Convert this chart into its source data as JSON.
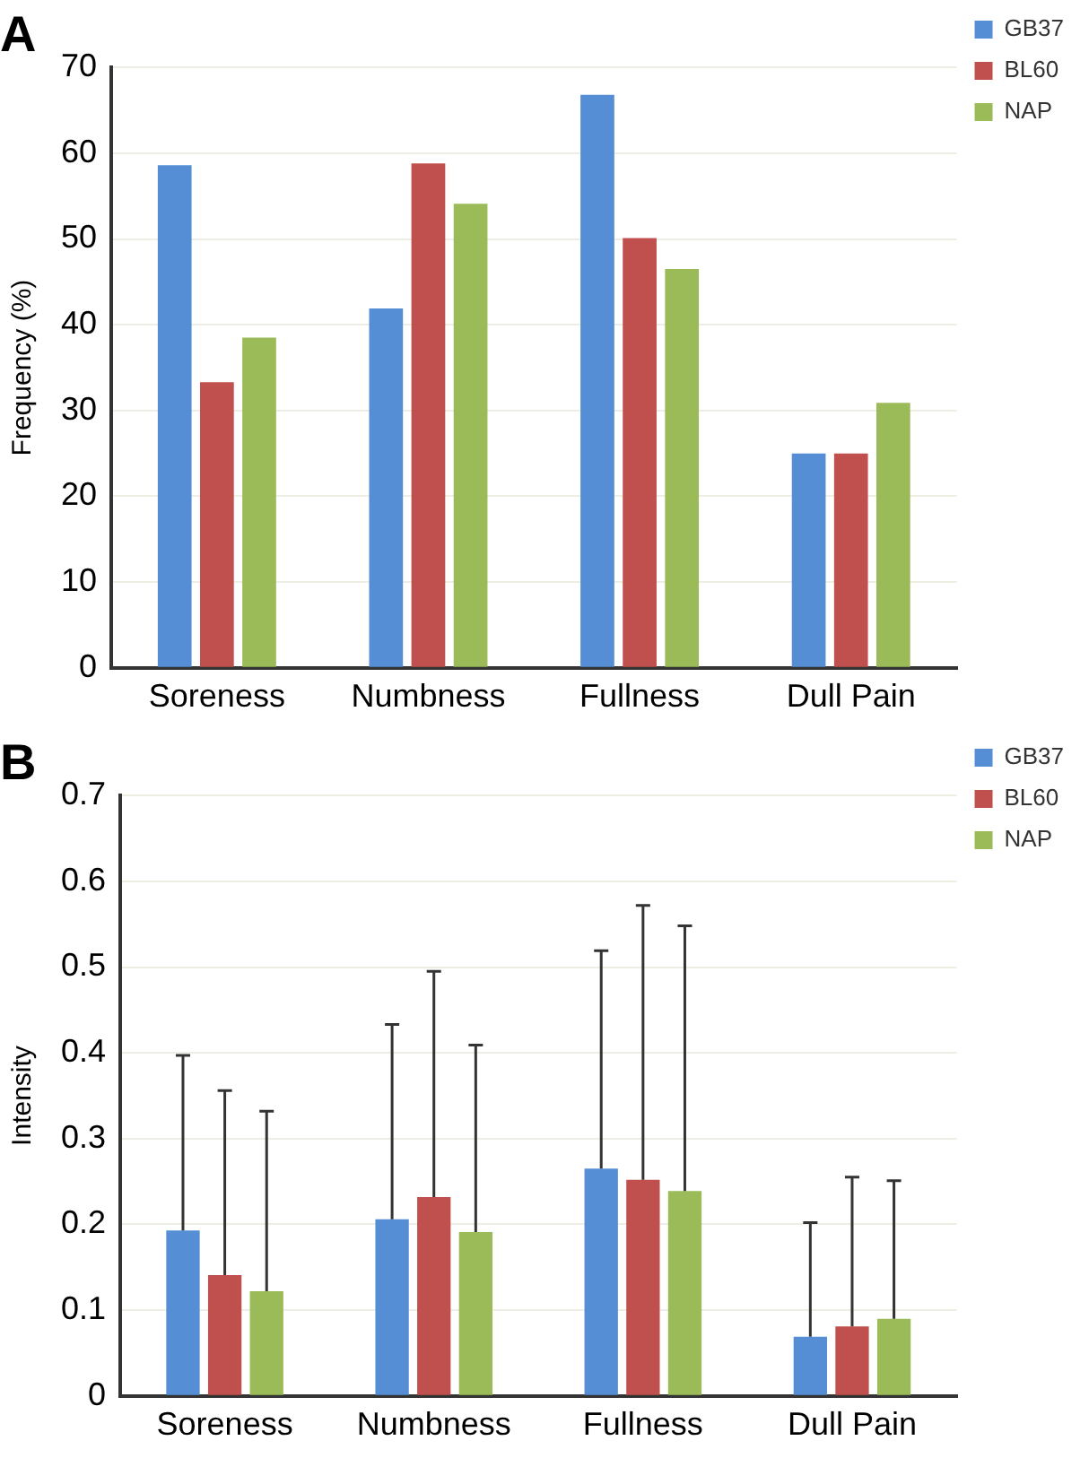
{
  "chart_data": [
    {
      "type": "bar",
      "title": "A",
      "ylabel": "Frequency (%)",
      "categories": [
        "Soreness",
        "Numbness",
        "Fullness",
        "Dull Pain"
      ],
      "series": [
        {
          "name": "GB37",
          "color": "#558ed5",
          "values": [
            58.6,
            41.9,
            66.8,
            25
          ]
        },
        {
          "name": "BL60",
          "color": "#c0504d",
          "values": [
            33.3,
            58.8,
            50.1,
            25
          ]
        },
        {
          "name": "NAP",
          "color": "#9bbb59",
          "values": [
            38.5,
            54.1,
            46.5,
            30.9
          ]
        }
      ],
      "ylim": [
        0,
        70
      ],
      "yticks": [
        0,
        10,
        20,
        30,
        40,
        50,
        60,
        70
      ],
      "grid": "y",
      "legend": "top right"
    },
    {
      "type": "bar",
      "title": "B",
      "ylabel": "Intensity",
      "categories": [
        "Soreness",
        "Numbness",
        "Fullness",
        "Dull Pain"
      ],
      "series": [
        {
          "name": "GB37",
          "color": "#558ed5",
          "values": [
            0.193,
            0.206,
            0.265,
            0.069
          ],
          "errors": [
            [
              0.193,
              0.397
            ],
            [
              0.206,
              0.433
            ],
            [
              0.265,
              0.519
            ],
            [
              0.069,
              0.202
            ]
          ]
        },
        {
          "name": "BL60",
          "color": "#c0504d",
          "values": [
            0.141,
            0.232,
            0.252,
            0.081
          ],
          "errors": [
            [
              0.141,
              0.356
            ],
            [
              0.232,
              0.495
            ],
            [
              0.252,
              0.572
            ],
            [
              0.081,
              0.255
            ]
          ]
        },
        {
          "name": "NAP",
          "color": "#9bbb59",
          "values": [
            0.122,
            0.191,
            0.239,
            0.09
          ],
          "errors": [
            [
              0.122,
              0.332
            ],
            [
              0.191,
              0.409
            ],
            [
              0.239,
              0.548
            ],
            [
              0.09,
              0.251
            ]
          ]
        }
      ],
      "ylim": [
        0,
        0.7
      ],
      "yticks": [
        0,
        0.1,
        0.2,
        0.3,
        0.4,
        0.5,
        0.6,
        0.7
      ],
      "grid": "y",
      "legend": "top right"
    }
  ]
}
